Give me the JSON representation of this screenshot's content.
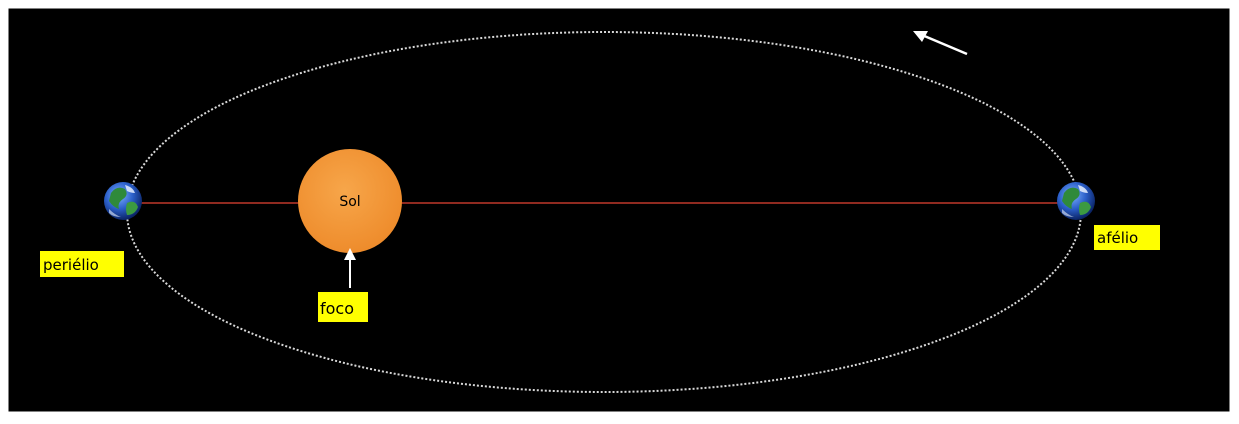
{
  "labels": {
    "sun": "Sol",
    "perihelion": "periélio",
    "aphelion": "afélio",
    "focus": "foco"
  },
  "colors": {
    "background": "#000000",
    "frame": "#ffffff",
    "orbit": "#d8d8d8",
    "major_axis": "#c0392b",
    "sun": "#f39a3a",
    "label_background": "#ffff00",
    "label_text": "#000000",
    "arrow": "#ffffff"
  },
  "icons": {
    "earth": "earth-globe-icon",
    "orbit_direction": "arrow-icon"
  }
}
